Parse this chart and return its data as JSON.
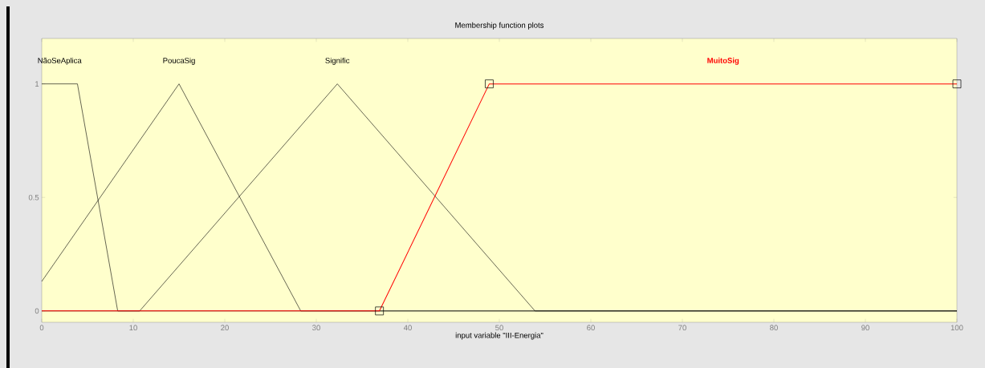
{
  "chart_data": {
    "type": "line",
    "title": "Membership function plots",
    "xlabel": "input variable \"III-Energia\"",
    "xlim": [
      0,
      100
    ],
    "ylim": [
      -0.05,
      1.2
    ],
    "xticks": [
      0,
      10,
      20,
      30,
      40,
      50,
      60,
      70,
      80,
      90,
      100
    ],
    "yticks": [
      0,
      0.5,
      1
    ],
    "grid": false,
    "legend": false,
    "series": [
      {
        "name": "NãoSeAplica",
        "color": "#000000",
        "marker": "none",
        "x": [
          0,
          3.9,
          8.3,
          100
        ],
        "values": [
          1,
          1,
          0,
          0
        ]
      },
      {
        "name": "PoucaSig",
        "color": "#000000",
        "marker": "none",
        "x": [
          0,
          15,
          28.3,
          100
        ],
        "values": [
          0.13,
          1,
          0,
          0
        ]
      },
      {
        "name": "Signific",
        "color": "#000000",
        "marker": "none",
        "x": [
          0,
          10.7,
          32.3,
          53.9,
          100
        ],
        "values": [
          0,
          0,
          1,
          0,
          0
        ]
      },
      {
        "name": "MuitoSig",
        "color": "#ff0000",
        "marker": "square",
        "x": [
          0,
          36.9,
          48.9,
          100
        ],
        "values": [
          0,
          0,
          1,
          1
        ]
      }
    ]
  }
}
